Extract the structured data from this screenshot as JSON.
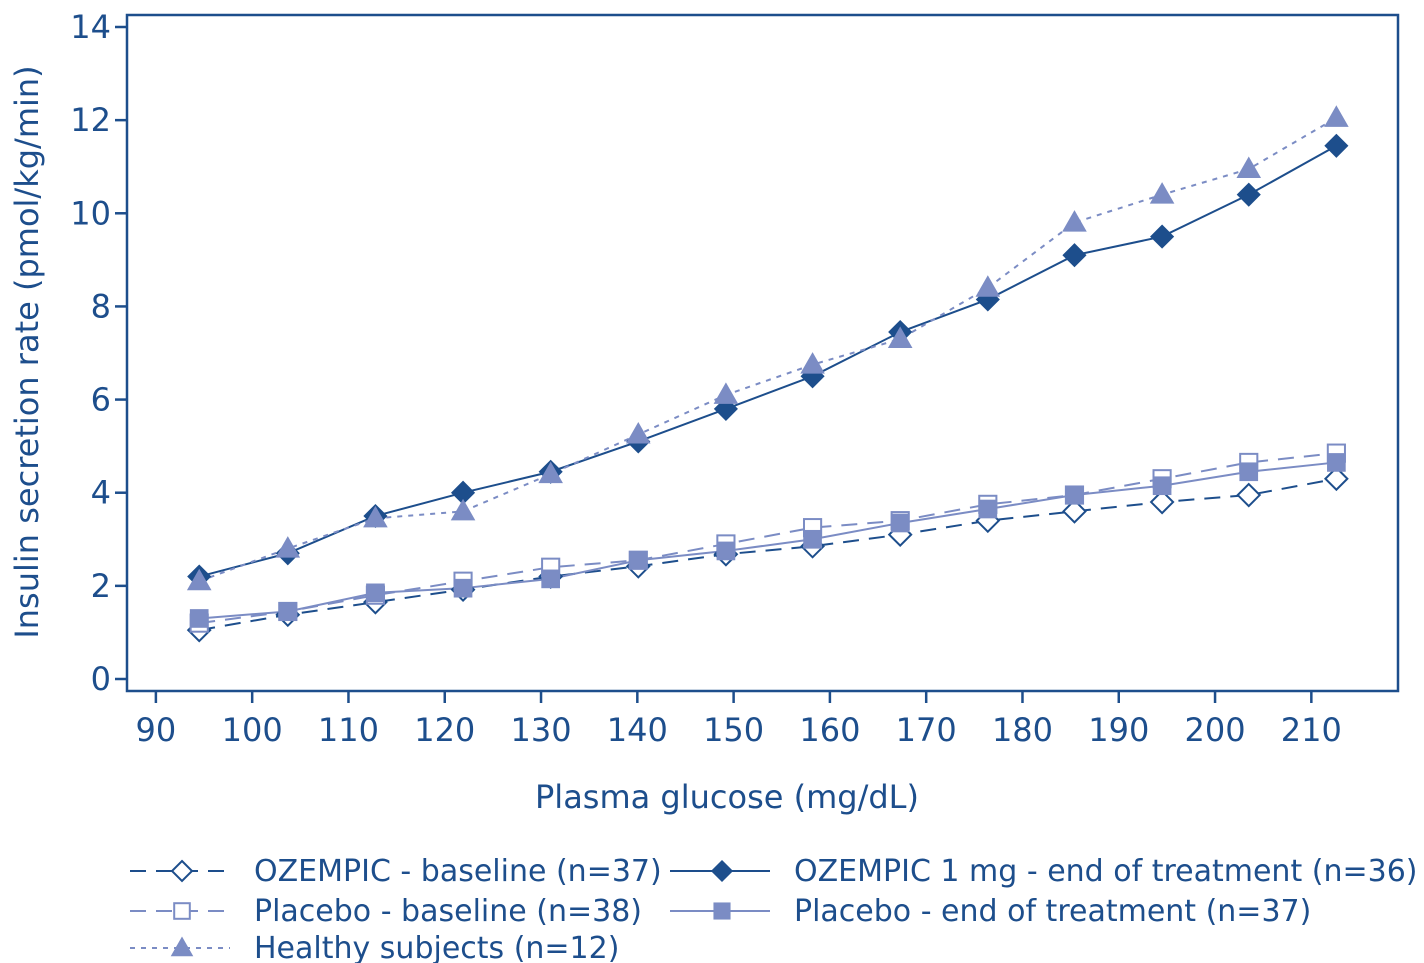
{
  "chart_data": {
    "type": "line",
    "xlabel": "Plasma glucose (mg/dL)",
    "ylabel": "Insulin secretion rate (pmol/kg/min)",
    "xlim": [
      87,
      219
    ],
    "ylim": [
      0,
      14
    ],
    "xticks": [
      90,
      100,
      110,
      120,
      130,
      140,
      150,
      160,
      170,
      180,
      190,
      200,
      210
    ],
    "yticks": [
      0,
      2,
      4,
      6,
      8,
      10,
      12,
      14
    ],
    "grid": false,
    "legend_position": "bottom",
    "series": [
      {
        "name": "OZEMPIC - baseline (n=37)",
        "marker": "diamond-open",
        "line": "dashed",
        "color": "#1d4e8c",
        "x": [
          94.5,
          103.7,
          112.8,
          121.9,
          131,
          140.1,
          149.2,
          158.2,
          167.3,
          176.4,
          185.4,
          194.5,
          203.5,
          212.6
        ],
        "y": [
          1.05,
          1.38,
          1.65,
          1.92,
          2.2,
          2.42,
          2.68,
          2.85,
          3.1,
          3.4,
          3.6,
          3.8,
          3.95,
          4.3
        ]
      },
      {
        "name": "OZEMPIC 1 mg - end of treatment (n=36)",
        "marker": "diamond-filled",
        "line": "solid",
        "color": "#1d4e8c",
        "x": [
          94.5,
          103.7,
          112.8,
          121.9,
          131,
          140.1,
          149.2,
          158.2,
          167.3,
          176.4,
          185.4,
          194.5,
          203.5,
          212.6
        ],
        "y": [
          2.2,
          2.7,
          3.5,
          4.0,
          4.45,
          5.1,
          5.8,
          6.5,
          7.45,
          8.15,
          9.1,
          9.5,
          10.4,
          11.45
        ]
      },
      {
        "name": "Placebo - baseline (n=38)",
        "marker": "square-open",
        "line": "dashed",
        "color": "#7b8cc4",
        "x": [
          94.5,
          103.7,
          112.8,
          121.9,
          131,
          140.1,
          149.2,
          158.2,
          167.3,
          176.4,
          185.4,
          194.5,
          203.5,
          212.6
        ],
        "y": [
          1.2,
          1.45,
          1.8,
          2.1,
          2.4,
          2.55,
          2.9,
          3.25,
          3.4,
          3.75,
          3.95,
          4.3,
          4.65,
          4.85
        ]
      },
      {
        "name": "Placebo - end of treatment (n=37)",
        "marker": "square-filled",
        "line": "solid",
        "color": "#7b8cc4",
        "x": [
          94.5,
          103.7,
          112.8,
          121.9,
          131,
          140.1,
          149.2,
          158.2,
          167.3,
          176.4,
          185.4,
          194.5,
          203.5,
          212.6
        ],
        "y": [
          1.3,
          1.45,
          1.85,
          1.95,
          2.15,
          2.55,
          2.75,
          3.0,
          3.35,
          3.65,
          3.95,
          4.15,
          4.45,
          4.65
        ]
      },
      {
        "name": "Healthy subjects (n=12)",
        "marker": "triangle-filled",
        "line": "dotted",
        "color": "#7b8cc4",
        "x": [
          94.5,
          103.7,
          112.8,
          121.9,
          131,
          140.1,
          149.2,
          158.2,
          167.3,
          176.4,
          185.4,
          194.5,
          203.5,
          212.6
        ],
        "y": [
          2.1,
          2.8,
          3.45,
          3.6,
          4.4,
          5.25,
          6.1,
          6.75,
          7.3,
          8.4,
          9.8,
          10.4,
          10.95,
          12.05
        ]
      }
    ]
  }
}
